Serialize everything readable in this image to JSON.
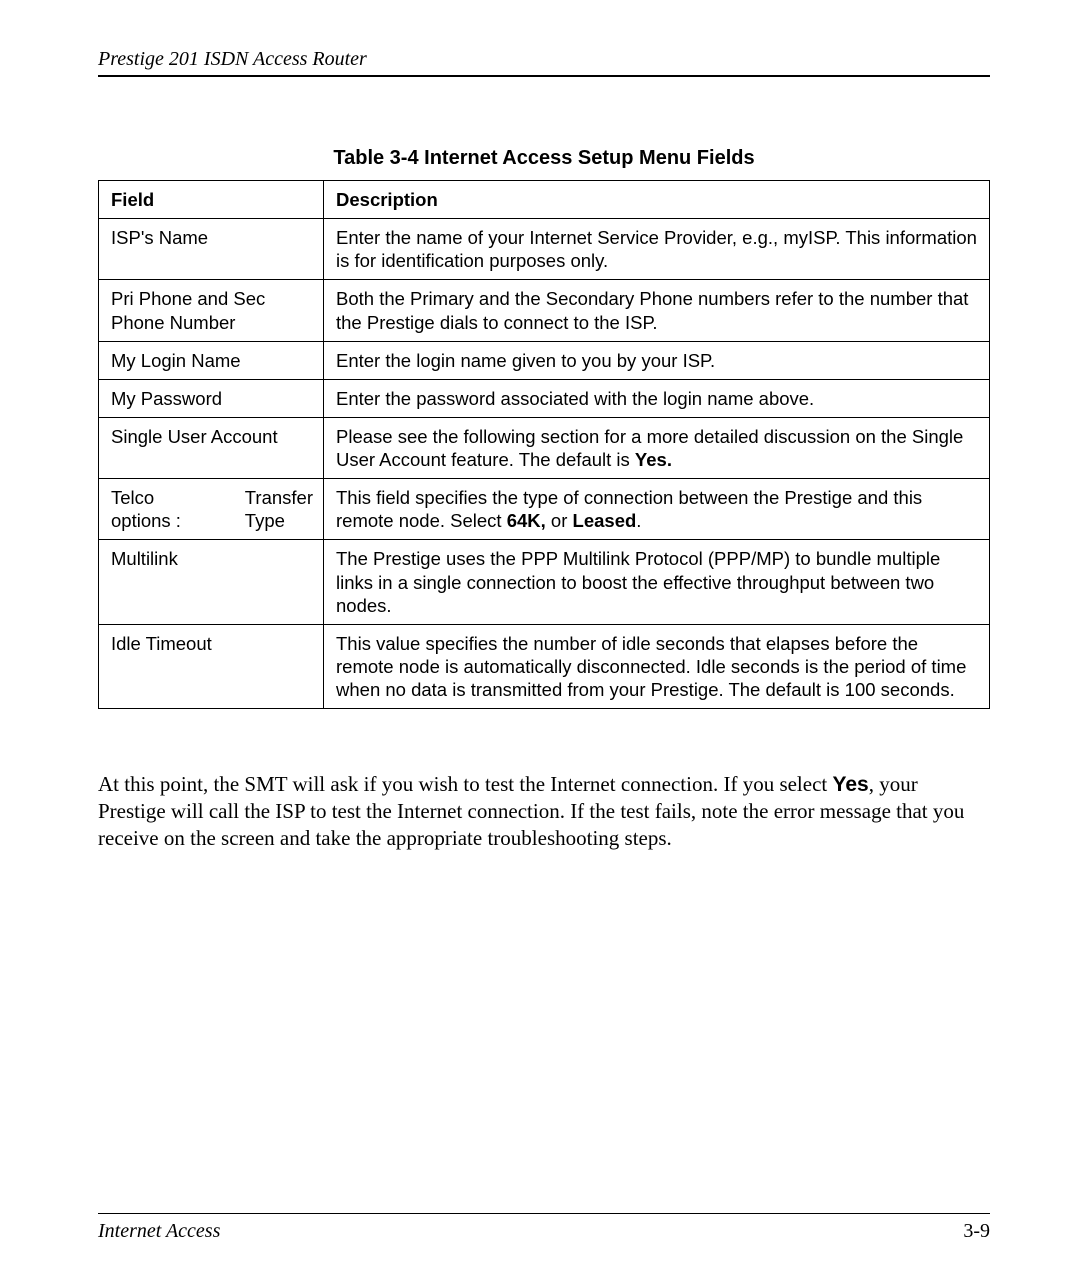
{
  "header": {
    "title": "Prestige 201 ISDN Access Router"
  },
  "caption": "Table 3-4 Internet Access Setup Menu Fields",
  "table": {
    "columns": [
      "Field",
      "Description"
    ],
    "rows": [
      {
        "field": "ISP's Name",
        "desc": "Enter the name of your Internet Service Provider, e.g., myISP. This information is for identification purposes only."
      },
      {
        "field": "Pri  Phone and Sec Phone Number",
        "desc": "Both the Primary and the Secondary Phone numbers refer to the number that the Prestige dials to connect to the ISP."
      },
      {
        "field": "My Login Name",
        "desc": "Enter the login name given to you by your ISP."
      },
      {
        "field": "My Password",
        "desc": "Enter the password associated with the login name above."
      },
      {
        "field": "Single User Account",
        "desc_pre": "Please see the following section for a more detailed discussion on the Single User Account feature. The default is ",
        "desc_bold": "Yes."
      },
      {
        "field_left_l1": "Telco",
        "field_left_l2": "options :",
        "field_right_l1": "Transfer",
        "field_right_l2": "Type",
        "desc_pre": "This field specifies the type of connection between the Prestige and this remote node.  Select ",
        "desc_bold1": "64K,",
        "desc_mid": " or ",
        "desc_bold2": "Leased",
        "desc_post": "."
      },
      {
        "field": "Multilink",
        "desc": "The Prestige uses the PPP Multilink Protocol (PPP/MP) to bundle multiple links in a single connection to boost the effective throughput between two nodes."
      },
      {
        "field": "Idle Timeout",
        "desc": "This value specifies the number of idle seconds that elapses before the remote node is automatically disconnected. Idle seconds is the period of time when no data is transmitted from your Prestige. The default is 100 seconds."
      }
    ]
  },
  "paragraph": {
    "pre": "At this point, the SMT will ask if you wish to test the Internet connection. If you select ",
    "yes": "Yes",
    "post": ", your Prestige will call the ISP to test the Internet connection. If the test fails, note the error message that you receive on the screen and take the appropriate troubleshooting steps."
  },
  "footer": {
    "left": "Internet Access",
    "right": "3-9"
  },
  "style": {
    "page_bg": "#ffffff",
    "text_color": "#000000",
    "border_color": "#000000",
    "caption_fontsize_pt": 15,
    "table_fontsize_pt": 14,
    "body_fontsize_pt": 16
  }
}
